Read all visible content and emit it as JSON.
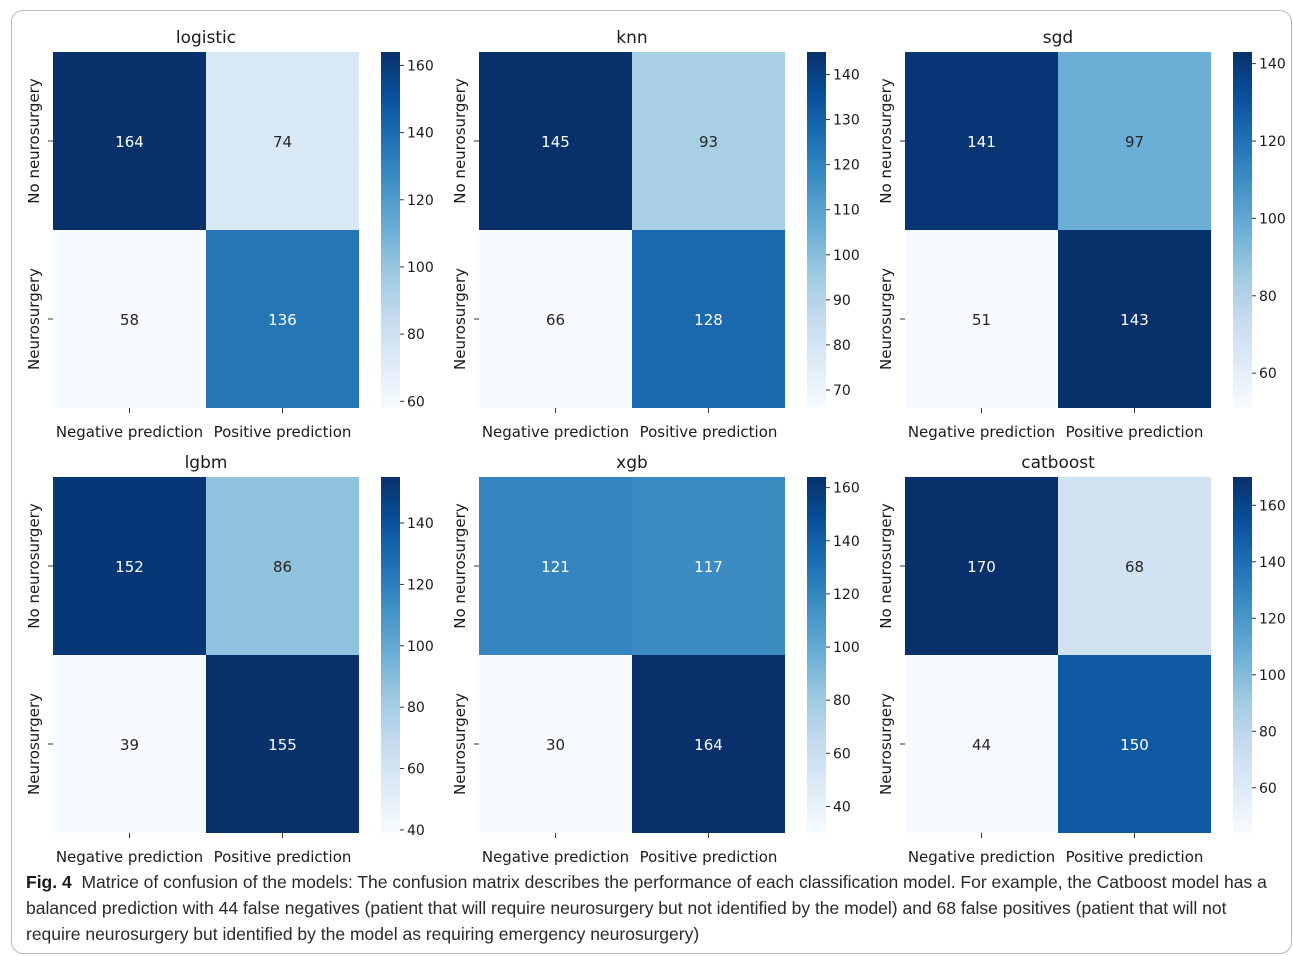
{
  "figure": {
    "label": "Fig. 4",
    "caption": "Matrice of confusion of the models: The confusion matrix describes the performance of each classification model. For example, the Catboost model has a balanced prediction with 44 false negatives (patient that will require neurosurgery but not identified by the model) and 68 false positives (patient that will not require neurosurgery but identified by the model as requiring emergency neurosurgery)"
  },
  "colormap": {
    "name": "Blues",
    "low": "#f7fbff",
    "high": "#08306b"
  },
  "chart_data": [
    {
      "type": "heatmap",
      "title": "logistic",
      "xticklabels": [
        "Negative prediction",
        "Positive prediction"
      ],
      "yticklabels": [
        "No neurosurgery",
        "Neurosurgery"
      ],
      "values": [
        [
          164,
          74
        ],
        [
          58,
          136
        ]
      ],
      "colorbar": {
        "vmin": 58,
        "vmax": 164,
        "ticks": [
          60,
          80,
          100,
          120,
          140,
          160
        ]
      }
    },
    {
      "type": "heatmap",
      "title": "knn",
      "xticklabels": [
        "Negative prediction",
        "Positive prediction"
      ],
      "yticklabels": [
        "No neurosurgery",
        "Neurosurgery"
      ],
      "values": [
        [
          145,
          93
        ],
        [
          66,
          128
        ]
      ],
      "colorbar": {
        "vmin": 66,
        "vmax": 145,
        "ticks": [
          70,
          80,
          90,
          100,
          110,
          120,
          130,
          140
        ]
      }
    },
    {
      "type": "heatmap",
      "title": "sgd",
      "xticklabels": [
        "Negative prediction",
        "Positive prediction"
      ],
      "yticklabels": [
        "No neurosurgery",
        "Neurosurgery"
      ],
      "values": [
        [
          141,
          97
        ],
        [
          51,
          143
        ]
      ],
      "colorbar": {
        "vmin": 51,
        "vmax": 143,
        "ticks": [
          60,
          80,
          100,
          120,
          140
        ]
      }
    },
    {
      "type": "heatmap",
      "title": "lgbm",
      "xticklabels": [
        "Negative prediction",
        "Positive prediction"
      ],
      "yticklabels": [
        "No neurosurgery",
        "Neurosurgery"
      ],
      "values": [
        [
          152,
          86
        ],
        [
          39,
          155
        ]
      ],
      "colorbar": {
        "vmin": 39,
        "vmax": 155,
        "ticks": [
          40,
          60,
          80,
          100,
          120,
          140
        ]
      }
    },
    {
      "type": "heatmap",
      "title": "xgb",
      "xticklabels": [
        "Negative prediction",
        "Positive prediction"
      ],
      "yticklabels": [
        "No neurosurgery",
        "Neurosurgery"
      ],
      "values": [
        [
          121,
          117
        ],
        [
          30,
          164
        ]
      ],
      "colorbar": {
        "vmin": 30,
        "vmax": 164,
        "ticks": [
          40,
          60,
          80,
          100,
          120,
          140,
          160
        ]
      }
    },
    {
      "type": "heatmap",
      "title": "catboost",
      "xticklabels": [
        "Negative prediction",
        "Positive prediction"
      ],
      "yticklabels": [
        "No neurosurgery",
        "Neurosurgery"
      ],
      "values": [
        [
          170,
          68
        ],
        [
          44,
          150
        ]
      ],
      "colorbar": {
        "vmin": 44,
        "vmax": 170,
        "ticks": [
          60,
          80,
          100,
          120,
          140,
          160
        ]
      }
    }
  ]
}
